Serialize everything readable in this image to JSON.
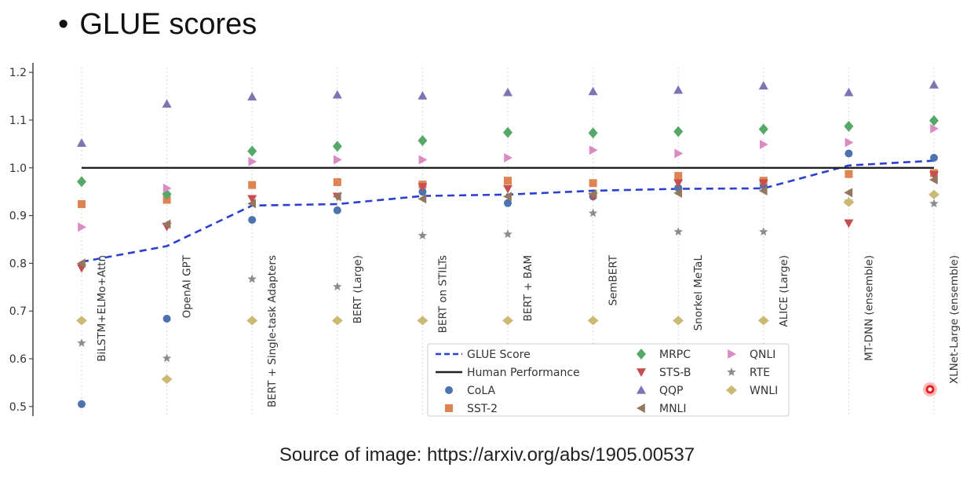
{
  "slide": {
    "bullet": "•",
    "title": "GLUE scores",
    "source": "Source of image: https://arxiv.org/abs/1905.00537"
  },
  "colors": {
    "CoLA": "#4c72b0",
    "SST-2": "#dd8452",
    "MRPC": "#55a868",
    "STS-B": "#c44e52",
    "QQP": "#8172b2",
    "MNLI": "#937860",
    "QNLI": "#da8bc3",
    "RTE": "#8c8c8c",
    "WNLI": "#ccb974",
    "GLUE Score": "#2b3fd1",
    "Human Performance": "#222222"
  },
  "chart_data": {
    "type": "scatter",
    "ylim": [
      0.48,
      1.22
    ],
    "yticks": [
      "0.5",
      "0.6",
      "0.7",
      "0.8",
      "0.9",
      "1.0",
      "1.1",
      "1.2"
    ],
    "grid": "vertical",
    "legend_placement": "lower center",
    "categories": [
      "BiLSTM+ELMo+Attn",
      "OpenAI GPT",
      "BERT + Single-task Adapters",
      "BERT (Large)",
      "BERT on STILTs",
      "BERT + BAM",
      "SemBERT",
      "Snorkel MeTaL",
      "ALICE (Large)",
      "MT-DNN (ensemble)",
      "XLNet-Large (ensemble)"
    ],
    "lines": [
      {
        "name": "GLUE Score",
        "style": "dashed",
        "values": [
          0.803,
          0.836,
          0.921,
          0.924,
          0.941,
          0.944,
          0.952,
          0.956,
          0.957,
          1.005,
          1.015
        ]
      },
      {
        "name": "Human Performance",
        "style": "solid",
        "values": [
          1.0,
          1.0,
          1.0,
          1.0,
          1.0,
          1.0,
          1.0,
          1.0,
          1.0,
          1.0,
          1.0
        ]
      }
    ],
    "series": [
      {
        "name": "CoLA",
        "marker": "circle",
        "values": [
          0.505,
          0.684,
          0.891,
          0.911,
          0.95,
          0.926,
          0.94,
          0.958,
          0.963,
          1.03,
          1.021
        ]
      },
      {
        "name": "SST-2",
        "marker": "square",
        "values": [
          0.924,
          0.933,
          0.964,
          0.97,
          0.965,
          0.973,
          0.968,
          0.983,
          0.973,
          0.987,
          0.989
        ]
      },
      {
        "name": "MRPC",
        "marker": "diamond",
        "values": [
          0.971,
          0.945,
          1.035,
          1.045,
          1.057,
          1.074,
          1.073,
          1.076,
          1.081,
          1.087,
          1.099
        ]
      },
      {
        "name": "STS-B",
        "marker": "triangle-down",
        "values": [
          0.79,
          0.877,
          0.935,
          0.94,
          0.96,
          0.956,
          0.94,
          0.968,
          0.968,
          0.884,
          0.985
        ]
      },
      {
        "name": "QQP",
        "marker": "triangle-up",
        "values": [
          1.052,
          1.134,
          1.149,
          1.153,
          1.151,
          1.158,
          1.16,
          1.163,
          1.172,
          1.158,
          1.174
        ]
      },
      {
        "name": "MNLI",
        "marker": "triangle-left",
        "values": [
          0.8,
          0.882,
          0.925,
          0.94,
          0.935,
          0.94,
          0.945,
          0.947,
          0.952,
          0.948,
          0.975
        ]
      },
      {
        "name": "QNLI",
        "marker": "triangle-right",
        "values": [
          0.876,
          0.957,
          1.013,
          1.017,
          1.017,
          1.021,
          1.037,
          1.03,
          1.049,
          1.053,
          1.082
        ]
      },
      {
        "name": "RTE",
        "marker": "star",
        "values": [
          0.633,
          0.601,
          0.767,
          0.751,
          0.858,
          0.861,
          0.905,
          0.866,
          0.866,
          0.93,
          0.925
        ]
      },
      {
        "name": "WNLI",
        "marker": "thin-diamond",
        "values": [
          0.68,
          0.557,
          0.68,
          0.68,
          0.68,
          0.68,
          0.68,
          0.68,
          0.68,
          0.928,
          0.944
        ]
      }
    ],
    "legend": [
      "GLUE Score",
      "Human Performance",
      "CoLA",
      "SST-2",
      "MRPC",
      "STS-B",
      "QQP",
      "MNLI",
      "QNLI",
      "RTE",
      "WNLI"
    ]
  }
}
